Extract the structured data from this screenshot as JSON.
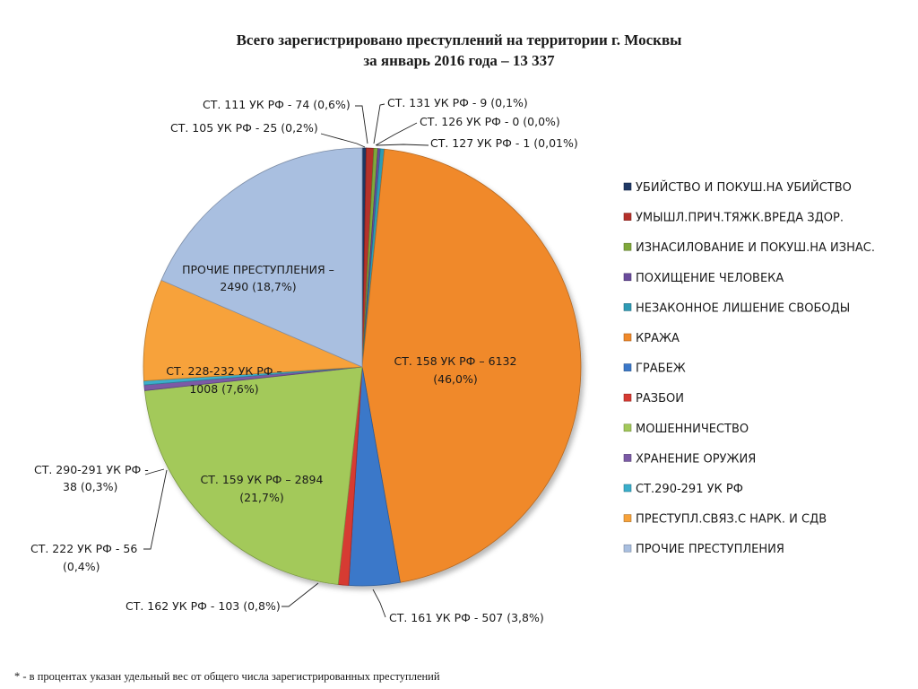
{
  "chart_data": {
    "type": "pie",
    "title": "Всего зарегистрировано преступлений на территории г. Москвы",
    "subtitle": "за январь 2016 года – 13 337",
    "total": 13337,
    "slices": [
      {
        "category": "УБИЙСТВО И ПОКУШ.НА УБИЙСТВО",
        "label": "СТ. 105 УК РФ - 25 (0,2%)",
        "value": 25,
        "percent": 0.2,
        "color": "#1f3864"
      },
      {
        "category": "УМЫШЛ.ПРИЧ.ТЯЖК.ВРЕДА ЗДОР.",
        "label": "СТ. 111 УК РФ -  74 (0,6%)",
        "value": 74,
        "percent": 0.6,
        "color": "#b5302a"
      },
      {
        "category": "ИЗНАСИЛОВАНИЕ И ПОКУШ.НА ИЗНАС.",
        "label": "СТ. 131 УК РФ - 9 (0,1%)",
        "value": 9,
        "percent": 0.1,
        "color": "#7fa83a"
      },
      {
        "category": "ПОХИЩЕНИЕ ЧЕЛОВЕКА",
        "label": "СТ. 126 УК РФ - 0 (0,0%)",
        "value": 0,
        "percent": 0.0,
        "color": "#6a4c9c"
      },
      {
        "category": "НЕЗАКОННОЕ ЛИШЕНИЕ СВОБОДЫ",
        "label": "СТ. 127 УК РФ - 1 (0,01%)",
        "value": 1,
        "percent": 0.01,
        "color": "#2e9bb5"
      },
      {
        "category": "КРАЖА",
        "label": "СТ. 158 УК РФ – 6132 (46,0%)",
        "value": 6132,
        "percent": 46.0,
        "color": "#f0892a"
      },
      {
        "category": "ГРАБЕЖ",
        "label": "СТ. 161 УК РФ - 507 (3,8%)",
        "value": 507,
        "percent": 3.8,
        "color": "#3b78c9"
      },
      {
        "category": "РАЗБОИ",
        "label": "СТ. 162 УК РФ - 103 (0,8%)",
        "value": 103,
        "percent": 0.8,
        "color": "#d63a32"
      },
      {
        "category": "МОШЕННИЧЕСТВО",
        "label": "СТ. 159 УК РФ – 2894 (21,7%)",
        "value": 2894,
        "percent": 21.7,
        "color": "#a3c95a"
      },
      {
        "category": "ХРАНЕНИЕ ОРУЖИЯ",
        "label": "СТ. 222 УК РФ - 56 (0,4%)",
        "value": 56,
        "percent": 0.4,
        "color": "#7b5aa6"
      },
      {
        "category": "СТ.290-291 УК РФ",
        "label": "СТ. 290-291 УК РФ - 38 (0,3%)",
        "value": 38,
        "percent": 0.3,
        "color": "#3aaecb"
      },
      {
        "category": "ПРЕСТУПЛ.СВЯЗ.С НАРК. И СДВ",
        "label": "СТ. 228-232 УК РФ – 1008 (7,6%)",
        "value": 1008,
        "percent": 7.6,
        "color": "#f7a23a"
      },
      {
        "category": "ПРОЧИЕ ПРЕСТУПЛЕНИЯ",
        "label": "ПРОЧИЕ ПРЕСТУПЛЕНИЯ – 2490 (18,7%)",
        "value": 2490,
        "percent": 18.7,
        "color": "#a9bfe0"
      }
    ],
    "legend_position": "right",
    "grid": false
  },
  "labels": {
    "s105": "СТ. 105 УК РФ - 25 (0,2%)",
    "s111": "СТ. 111 УК РФ -  74 (0,6%)",
    "s131": "СТ. 131 УК РФ - 9 (0,1%)",
    "s126": "СТ. 126 УК РФ - 0 (0,0%)",
    "s127": "СТ. 127 УК РФ - 1 (0,01%)",
    "s158_l1": "СТ. 158 УК РФ – 6132",
    "s158_l2": "(46,0%)",
    "s161": "СТ. 161 УК РФ - 507 (3,8%)",
    "s162": "СТ. 162 УК РФ - 103 (0,8%)",
    "s159_l1": "СТ. 159 УК РФ – 2894",
    "s159_l2": "(21,7%)",
    "s222_l1": "СТ. 222 УК РФ - 56",
    "s222_l2": "(0,4%)",
    "s290_l1": "СТ. 290-291 УК РФ -",
    "s290_l2": "38 (0,3%)",
    "s228_l1": "СТ. 228-232 УК РФ –",
    "s228_l2": "1008 (7,6%)",
    "other_l1": "ПРОЧИЕ ПРЕСТУПЛЕНИЯ –",
    "other_l2": "2490 (18,7%)"
  },
  "footnote": "* - в процентах указан удельный вес от общего числа зарегистрированных преступлений"
}
